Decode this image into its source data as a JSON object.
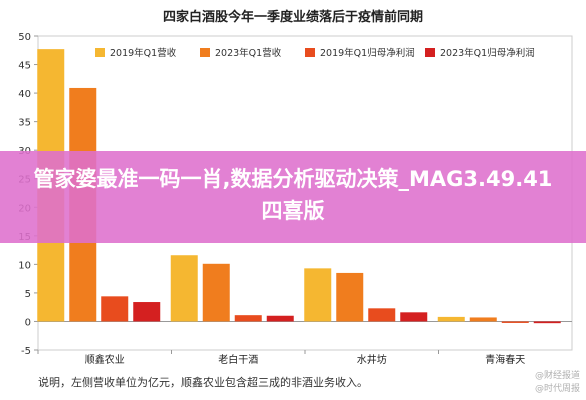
{
  "chart_data": {
    "type": "bar",
    "title": "四家白酒股今年一季度业绩落后于疫情前同期",
    "categories": [
      "顺鑫农业",
      "老白干酒",
      "水井坊",
      "青海春天"
    ],
    "series": [
      {
        "name": "2019年Q1营收",
        "color": "#f5b731",
        "values": [
          47.7,
          11.6,
          9.3,
          0.8
        ]
      },
      {
        "name": "2023年Q1营收",
        "color": "#f07d1e",
        "values": [
          40.9,
          10.1,
          8.5,
          0.7
        ]
      },
      {
        "name": "2019年Q1归母净利润",
        "color": "#e84c1e",
        "values": [
          4.4,
          1.1,
          2.3,
          -0.1
        ]
      },
      {
        "name": "2023年Q1归母净利润",
        "color": "#d42020",
        "values": [
          3.4,
          1.0,
          1.6,
          -0.3
        ]
      }
    ],
    "yticks": [
      -5,
      0,
      5,
      10,
      15,
      20,
      25,
      30,
      35,
      40,
      45,
      50
    ],
    "ylim": [
      -5,
      50
    ],
    "grid": false,
    "legend_position": "top"
  },
  "note": "说明，左侧营收单位为亿元，顺鑫农业包含超三成的非酒业务收入。",
  "overlay": {
    "text": "管家婆最准一码一肖,数据分析驱动决策_MAG3.49.41四喜版"
  },
  "watermark": {
    "line1": "@财经报道",
    "line2": "@时代周报"
  }
}
